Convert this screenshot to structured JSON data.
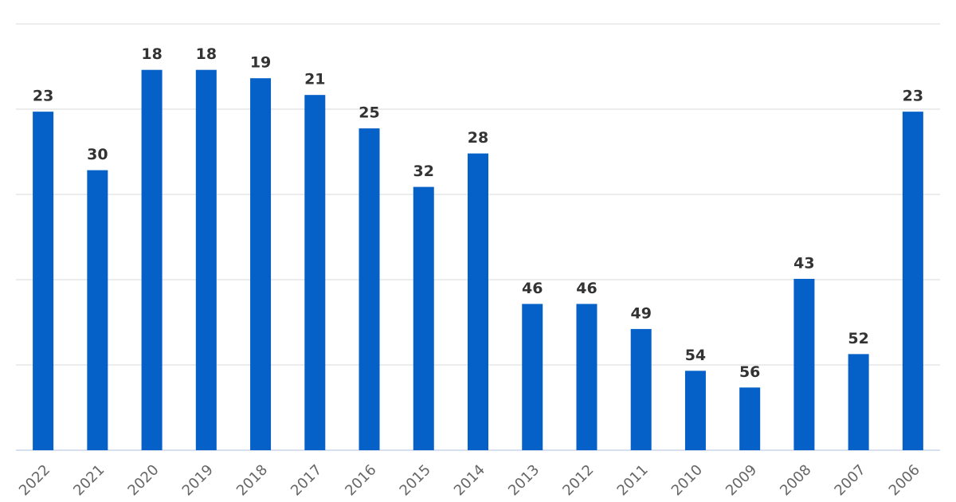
{
  "chart_data": {
    "type": "bar",
    "categories": [
      "2022",
      "2021",
      "2020",
      "2019",
      "2018",
      "2017",
      "2016",
      "2015",
      "2014",
      "2013",
      "2012",
      "2011",
      "2010",
      "2009",
      "2008",
      "2007",
      "2006"
    ],
    "values": [
      23,
      30,
      18,
      18,
      19,
      21,
      25,
      32,
      28,
      46,
      46,
      49,
      54,
      56,
      43,
      52,
      23
    ],
    "color": "#0561c8",
    "ylim": [
      63.5,
      12.5
    ],
    "yticks": [
      63.5,
      53.3,
      43.1,
      32.9,
      22.7,
      12.5
    ],
    "grid": true
  }
}
